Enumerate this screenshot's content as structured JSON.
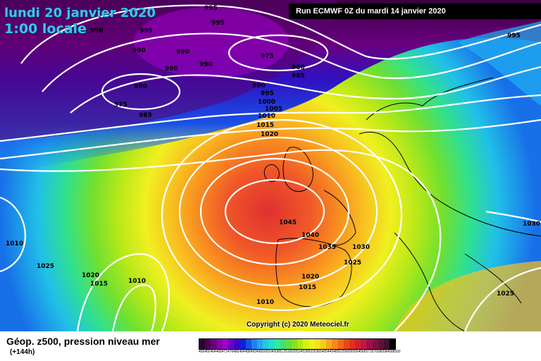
{
  "header": {
    "date_line": "lundi 20 janvier 2020",
    "time_line": "1:00 locale",
    "run_info": "Run ECMWF 0Z du mardi 14 janvier 2020"
  },
  "copyright": "Copyright (c) 2020 Meteociel.fr",
  "legend": {
    "title": "Géop. z500, pression niveau mer",
    "subtitle": "(+144h)",
    "scale_colors": [
      "#2a0030",
      "#4a0050",
      "#6a0080",
      "#8a00a8",
      "#a000c8",
      "#6a00c8",
      "#3a00c8",
      "#1020d8",
      "#1850e8",
      "#2080f0",
      "#20a8f0",
      "#20c8e8",
      "#20e0c8",
      "#30e8a0",
      "#40e070",
      "#60e040",
      "#88e020",
      "#b0e810",
      "#d8f010",
      "#f0f020",
      "#f8e020",
      "#f8c818",
      "#f8a818",
      "#f88818",
      "#f06818",
      "#e84818",
      "#e03020",
      "#d02030",
      "#c01840",
      "#a01048",
      "#801040",
      "#601038",
      "#401030",
      "#000000"
    ],
    "scale_ticks": [
      "456",
      "460",
      "464",
      "468",
      "472",
      "476",
      "480",
      "484",
      "488",
      "492",
      "496",
      "500",
      "504",
      "508",
      "512",
      "516",
      "520",
      "524",
      "528",
      "532",
      "536",
      "540",
      "544",
      "548",
      "552",
      "556",
      "560",
      "564",
      "568",
      "572",
      "576",
      "580",
      "584",
      "588",
      "592"
    ]
  },
  "isobars": [
    {
      "label": "995"
    },
    {
      "label": "995"
    },
    {
      "label": "995"
    },
    {
      "label": "990"
    },
    {
      "label": "990"
    },
    {
      "label": "990"
    },
    {
      "label": "990"
    },
    {
      "label": "990"
    },
    {
      "label": "975"
    },
    {
      "label": "980"
    },
    {
      "label": "985"
    },
    {
      "label": "995"
    },
    {
      "label": "980"
    },
    {
      "label": "975"
    },
    {
      "label": "985"
    },
    {
      "label": "990"
    },
    {
      "label": "995"
    },
    {
      "label": "1000"
    },
    {
      "label": "1005"
    },
    {
      "label": "1010"
    },
    {
      "label": "1015"
    },
    {
      "label": "1020"
    },
    {
      "label": "1045"
    },
    {
      "label": "1040"
    },
    {
      "label": "1035"
    },
    {
      "label": "1030"
    },
    {
      "label": "1025"
    },
    {
      "label": "1025"
    },
    {
      "label": "1020"
    },
    {
      "label": "1015"
    },
    {
      "label": "1010"
    },
    {
      "label": "1020"
    },
    {
      "label": "1015"
    },
    {
      "label": "1010"
    },
    {
      "label": "1030"
    },
    {
      "label": "1025"
    },
    {
      "label": "1010"
    }
  ]
}
